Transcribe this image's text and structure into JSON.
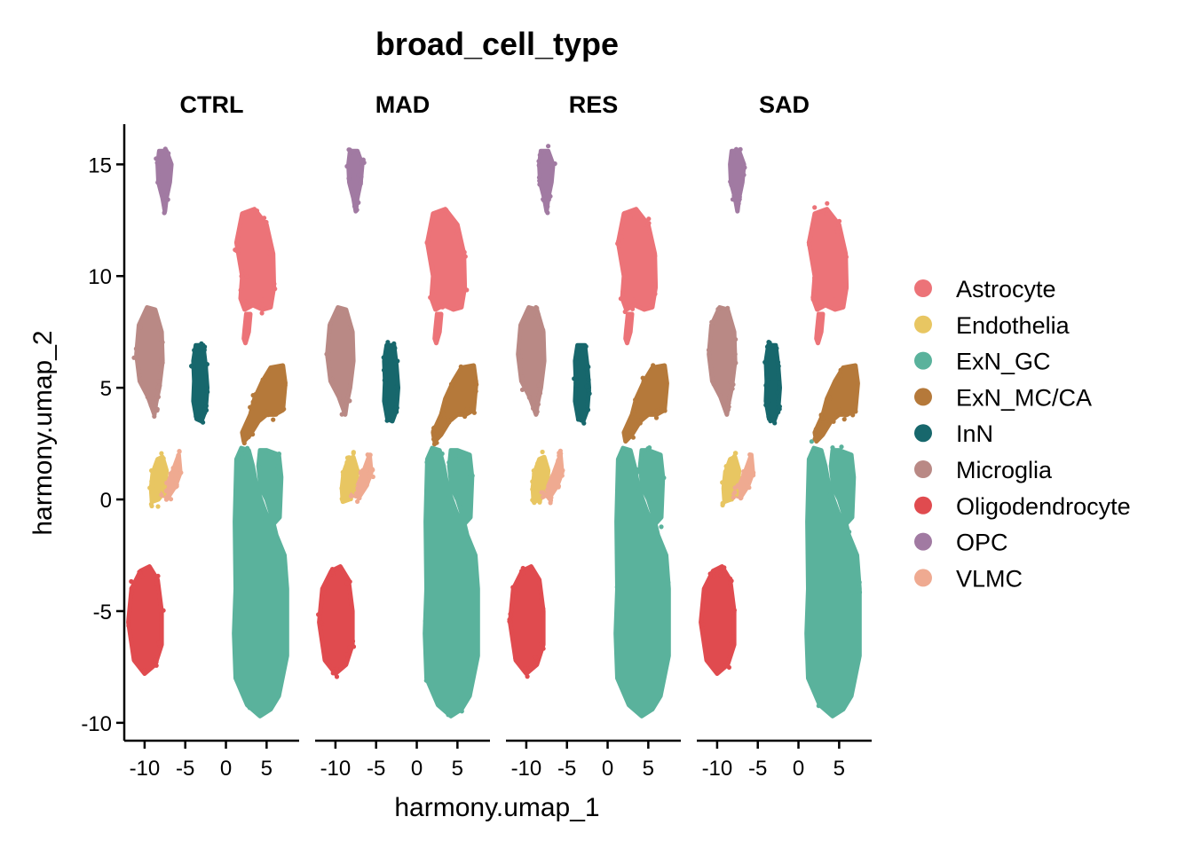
{
  "chart_data": {
    "type": "scatter",
    "title": "broad_cell_type",
    "xlabel": "harmony.umap_1",
    "ylabel": "harmony.umap_2",
    "panels": [
      "CTRL",
      "MAD",
      "RES",
      "SAD"
    ],
    "xlim": [
      -12.5,
      9
    ],
    "ylim": [
      -10.8,
      16.8
    ],
    "xticks": [
      -10,
      -5,
      0,
      5
    ],
    "xtick_labels": [
      "-10",
      "-5",
      "0",
      "5"
    ],
    "yticks": [
      -10,
      -5,
      0,
      5,
      10,
      15
    ],
    "ytick_labels": [
      "-10",
      "-5",
      "0",
      "5",
      "10",
      "15"
    ],
    "grid": false,
    "legend_position": "right",
    "series": [
      {
        "name": "Astrocyte",
        "color": "#EC7378",
        "outline": [
          [
            2.0,
            10
          ],
          [
            1.3,
            11.5
          ],
          [
            2,
            12.8
          ],
          [
            3.5,
            13
          ],
          [
            5,
            12.3
          ],
          [
            5.8,
            11
          ],
          [
            5.9,
            9.5
          ],
          [
            5.5,
            8.6
          ],
          [
            4.5,
            8.5
          ],
          [
            3.3,
            8.7
          ],
          [
            2.3,
            8.5
          ],
          [
            1.8,
            9
          ]
        ],
        "tail": [
          [
            2.5,
            8.3
          ],
          [
            2.3,
            7.6
          ],
          [
            2.2,
            7.2
          ],
          [
            2.4,
            7.0
          ],
          [
            2.8,
            7.5
          ],
          [
            3.0,
            8.3
          ]
        ]
      },
      {
        "name": "Endothelia",
        "color": "#E8C662",
        "outline": [
          [
            -9.2,
            0.5
          ],
          [
            -9.1,
            -0.1
          ],
          [
            -8.3,
            0
          ],
          [
            -7.5,
            0.4
          ],
          [
            -7.3,
            1.3
          ],
          [
            -7.8,
            1.9
          ],
          [
            -8.4,
            1.8
          ],
          [
            -9.0,
            1.2
          ]
        ]
      },
      {
        "name": "ExN_GC",
        "color": "#5AB29C",
        "outline": [
          [
            1.2,
            -4
          ],
          [
            1.0,
            -6
          ],
          [
            1.2,
            -8
          ],
          [
            2.6,
            -9.2
          ],
          [
            4.2,
            -9.7
          ],
          [
            5.5,
            -9.4
          ],
          [
            6.5,
            -8.8
          ],
          [
            7.5,
            -7
          ],
          [
            7.5,
            -4
          ],
          [
            7.2,
            -2.5
          ],
          [
            6.2,
            -1.6
          ],
          [
            5.6,
            -0.7
          ],
          [
            5.0,
            0
          ],
          [
            4.3,
            0.5
          ],
          [
            4,
            1.5
          ],
          [
            4.2,
            2.2
          ],
          [
            5.0,
            2.2
          ],
          [
            6.5,
            2.0
          ],
          [
            6.8,
            1.0
          ],
          [
            6.6,
            -0.8
          ],
          [
            5.6,
            -1.2
          ],
          [
            4.8,
            -0.5
          ],
          [
            3.8,
            0.5
          ],
          [
            3.3,
            1.5
          ],
          [
            2.8,
            2.2
          ],
          [
            1.9,
            2.3
          ],
          [
            1.3,
            1.8
          ],
          [
            1.1,
            -1
          ]
        ]
      },
      {
        "name": "ExN_MC/CA",
        "color": "#B5793A",
        "outline": [
          [
            2.0,
            3.0
          ],
          [
            3.0,
            3.8
          ],
          [
            3.5,
            4.5
          ],
          [
            4.5,
            5.3
          ],
          [
            5.5,
            5.9
          ],
          [
            7,
            6.0
          ],
          [
            7.3,
            5.2
          ],
          [
            7.0,
            4.0
          ],
          [
            6.0,
            3.8
          ],
          [
            5,
            3.8
          ],
          [
            4.0,
            3.5
          ],
          [
            3.0,
            2.9
          ],
          [
            2.2,
            2.6
          ]
        ]
      },
      {
        "name": "InN",
        "color": "#17676C",
        "outline": [
          [
            -4.0,
            6.2
          ],
          [
            -3.7,
            6.9
          ],
          [
            -2.8,
            6.9
          ],
          [
            -2.5,
            6.0
          ],
          [
            -2.3,
            5.0
          ],
          [
            -2.5,
            4.0
          ],
          [
            -3.0,
            3.5
          ],
          [
            -3.6,
            3.6
          ],
          [
            -4.0,
            4.4
          ],
          [
            -3.9,
            5.3
          ]
        ]
      },
      {
        "name": "Microglia",
        "color": "#B98985",
        "outline": [
          [
            -11.0,
            6.5
          ],
          [
            -10.7,
            7.8
          ],
          [
            -9.7,
            8.6
          ],
          [
            -8.7,
            8.5
          ],
          [
            -7.9,
            7.5
          ],
          [
            -7.8,
            6.2
          ],
          [
            -8.2,
            5.0
          ],
          [
            -8.6,
            4.3
          ],
          [
            -8.8,
            3.8
          ],
          [
            -9.1,
            4.1
          ],
          [
            -9.6,
            4.6
          ],
          [
            -10.6,
            5.3
          ]
        ]
      },
      {
        "name": "Oligodendrocyte",
        "color": "#E04B4F",
        "outline": [
          [
            -12.0,
            -5.5
          ],
          [
            -11.6,
            -4
          ],
          [
            -10.5,
            -3.2
          ],
          [
            -9.4,
            -3.0
          ],
          [
            -8.4,
            -3.6
          ],
          [
            -7.9,
            -5
          ],
          [
            -7.9,
            -6.5
          ],
          [
            -8.7,
            -7.4
          ],
          [
            -10,
            -7.8
          ],
          [
            -11.3,
            -7.2
          ]
        ]
      },
      {
        "name": "OPC",
        "color": "#A17AA2",
        "outline": [
          [
            -8.4,
            15.0
          ],
          [
            -8.2,
            15.6
          ],
          [
            -7.3,
            15.6
          ],
          [
            -6.7,
            15.0
          ],
          [
            -6.9,
            14.2
          ],
          [
            -7.3,
            13.5
          ],
          [
            -7.5,
            12.9
          ],
          [
            -7.8,
            13.5
          ],
          [
            -8.3,
            14.2
          ]
        ]
      },
      {
        "name": "VLMC",
        "color": "#EFAA91",
        "outline": [
          [
            -8.0,
            0.2
          ],
          [
            -7.4,
            0.5
          ],
          [
            -6.6,
            1.2
          ],
          [
            -5.8,
            2.0
          ],
          [
            -5.6,
            1.2
          ],
          [
            -6.2,
            0.6
          ],
          [
            -7.1,
            0.1
          ]
        ]
      }
    ]
  }
}
